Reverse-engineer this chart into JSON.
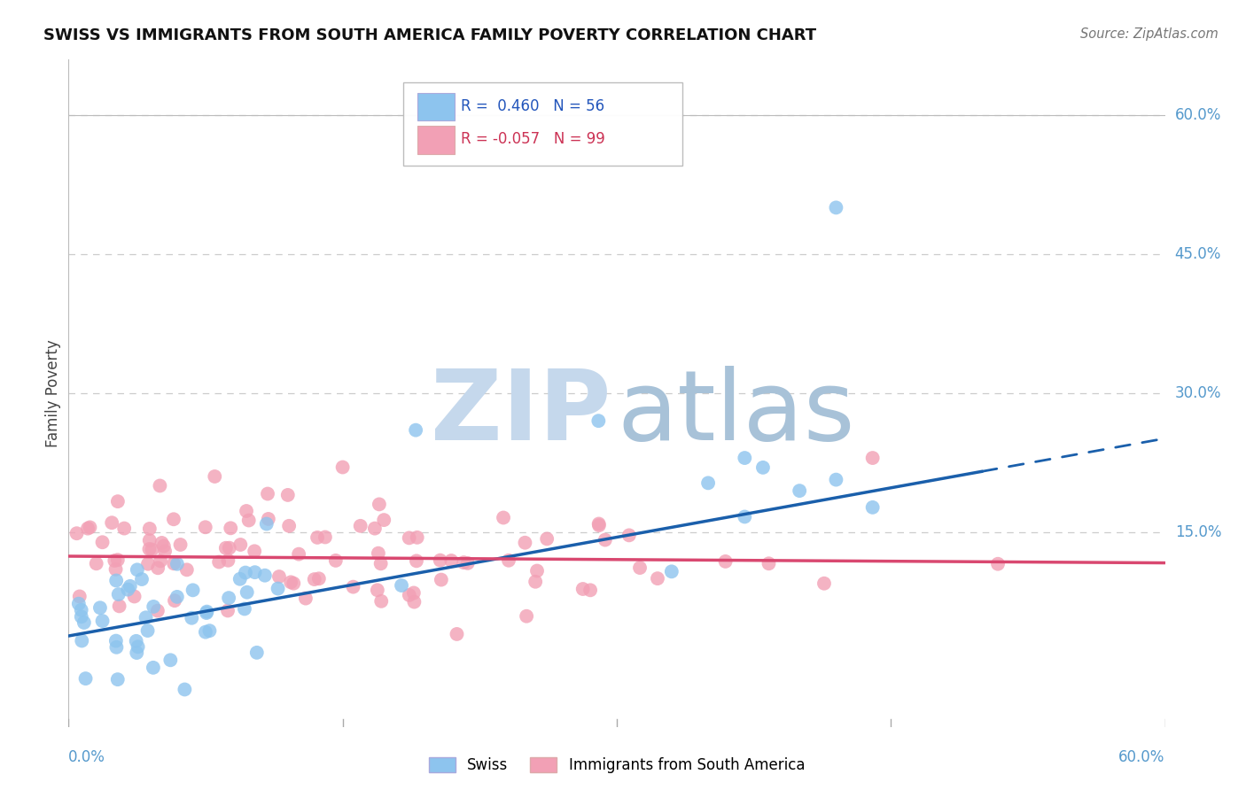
{
  "title": "SWISS VS IMMIGRANTS FROM SOUTH AMERICA FAMILY POVERTY CORRELATION CHART",
  "source": "Source: ZipAtlas.com",
  "ylabel": "Family Poverty",
  "xmin": 0.0,
  "xmax": 0.6,
  "ymin": -0.06,
  "ymax": 0.66,
  "legend_r1": "R =  0.460",
  "legend_n1": "N = 56",
  "legend_r2": "R = -0.057",
  "legend_n2": "N = 99",
  "color_swiss": "#8DC4EE",
  "color_sa": "#F2A0B5",
  "color_swiss_line": "#1A5FAB",
  "color_sa_line": "#D94870",
  "watermark_zip_color": "#C5D8EC",
  "watermark_atlas_color": "#A8C2D8",
  "grid_color": "#CCCCCC",
  "background_color": "#FFFFFF",
  "right_label_color": "#5599CC",
  "title_color": "#111111",
  "source_color": "#777777",
  "ylabel_color": "#444444",
  "bottom_label_color": "#5599CC"
}
